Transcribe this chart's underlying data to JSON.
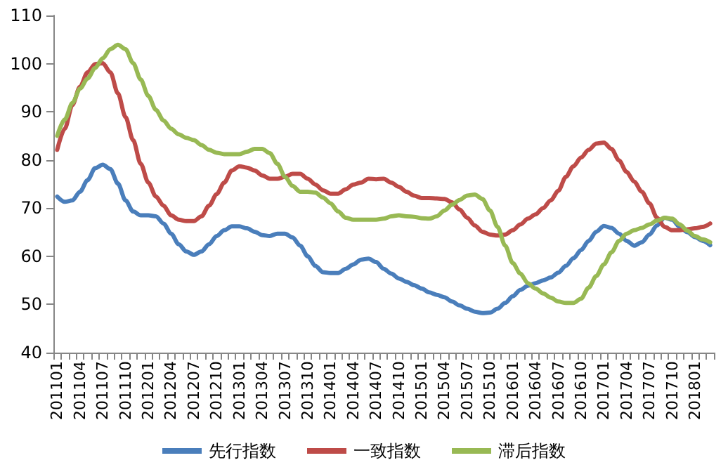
{
  "chart_data": {
    "type": "line",
    "categories": [
      "201101",
      null,
      null,
      "201104",
      null,
      null,
      "201107",
      null,
      null,
      "201110",
      null,
      null,
      "201201",
      null,
      null,
      "201204",
      null,
      null,
      "201207",
      null,
      null,
      "201210",
      null,
      null,
      "201301",
      null,
      null,
      "201304",
      null,
      null,
      "201307",
      null,
      null,
      "201310",
      null,
      null,
      "201401",
      null,
      null,
      "201404",
      null,
      null,
      "201407",
      null,
      null,
      "201410",
      null,
      null,
      "201501",
      null,
      null,
      "201504",
      null,
      null,
      "201507",
      null,
      null,
      "201510",
      null,
      null,
      "201601",
      null,
      null,
      "201604",
      null,
      null,
      "201607",
      null,
      null,
      "201610",
      null,
      null,
      "201701",
      null,
      null,
      "201704",
      null,
      null,
      "201707",
      null,
      null,
      "201710",
      null,
      null,
      "201801",
      null,
      null
    ],
    "series": [
      {
        "name": "先行指数",
        "color": "#4a7ebb",
        "values": [
          72.4,
          71.3,
          71.6,
          73.4,
          75.8,
          78.3,
          79,
          78.1,
          75.1,
          71.6,
          69.3,
          68.5,
          68.5,
          68.3,
          66.8,
          64.7,
          62.5,
          61,
          60.3,
          61,
          62.5,
          64.2,
          65.4,
          66.2,
          66.2,
          65.8,
          65.1,
          64.4,
          64.2,
          64.7,
          64.7,
          63.9,
          62.2,
          60,
          58,
          56.7,
          56.5,
          56.5,
          57.4,
          58.3,
          59.3,
          59.5,
          58.8,
          57.4,
          56.4,
          55.4,
          54.7,
          54,
          53.3,
          52.5,
          52,
          51.5,
          50.6,
          49.8,
          49.1,
          48.5,
          48.2,
          48.3,
          49.1,
          50.3,
          51.7,
          53,
          53.9,
          54.4,
          55,
          55.6,
          56.6,
          58,
          59.6,
          61.3,
          63.2,
          65.1,
          66.3,
          65.9,
          64.7,
          63.2,
          62.2,
          62.9,
          64.5,
          66.4,
          68,
          67.6,
          66.1,
          65,
          64,
          63.2,
          62.3
        ]
      },
      {
        "name": "一致指数",
        "color": "#be4b48",
        "values": [
          82.1,
          86.5,
          91.4,
          95.2,
          98.2,
          99.9,
          100.1,
          98.2,
          93.8,
          88.9,
          84.1,
          79.2,
          75.3,
          72.4,
          70.5,
          68.5,
          67.6,
          67.3,
          67.3,
          68.3,
          70.5,
          72.9,
          75.3,
          77.8,
          78.7,
          78.4,
          77.8,
          76.8,
          76.1,
          76.1,
          76.5,
          77.1,
          77.1,
          76.1,
          74.9,
          73.7,
          73,
          73,
          73.9,
          74.9,
          75.3,
          76.1,
          76,
          76.1,
          75.3,
          74.4,
          73.4,
          72.6,
          72.1,
          72.1,
          72,
          71.9,
          71.2,
          69.7,
          68,
          66.4,
          65.1,
          64.5,
          64.3,
          64.5,
          65.4,
          66.6,
          67.8,
          68.7,
          70,
          71.6,
          73.6,
          76.5,
          78.7,
          80.5,
          82.1,
          83.4,
          83.6,
          82.3,
          79.9,
          77.5,
          75.5,
          73.4,
          71,
          68,
          66.1,
          65.4,
          65.4,
          65.6,
          65.8,
          66.1,
          66.8
        ]
      },
      {
        "name": "滞后指数",
        "color": "#98b954",
        "values": [
          85,
          88.4,
          91.8,
          94.8,
          96.9,
          99.1,
          101.1,
          103,
          103.9,
          103,
          100.1,
          96.7,
          93.3,
          90.4,
          88.2,
          86.5,
          85.3,
          84.6,
          84.1,
          83.1,
          82.1,
          81.5,
          81.2,
          81.2,
          81.2,
          81.7,
          82.3,
          82.3,
          81.4,
          79.2,
          76.5,
          74.6,
          73.4,
          73.4,
          73.2,
          72.2,
          71,
          69.3,
          68,
          67.6,
          67.6,
          67.6,
          67.6,
          67.8,
          68.3,
          68.5,
          68.3,
          68.2,
          67.9,
          67.8,
          68.3,
          69.5,
          70.7,
          71.7,
          72.6,
          72.8,
          71.9,
          69.5,
          66.1,
          62.2,
          58.6,
          56.4,
          54.4,
          53.3,
          52.3,
          51.4,
          50.6,
          50.3,
          50.3,
          51.2,
          53.5,
          55.9,
          58.3,
          60.8,
          63.2,
          64.7,
          65.4,
          65.9,
          66.6,
          67.4,
          68,
          67.8,
          66.6,
          65.3,
          64.2,
          63.5,
          62.9
        ]
      }
    ],
    "ylim": [
      40,
      110
    ],
    "yticks": [
      40,
      50,
      60,
      70,
      80,
      90,
      100,
      110
    ],
    "grid": false,
    "legend": "bottom",
    "marker": "none",
    "line_style": "solid"
  }
}
